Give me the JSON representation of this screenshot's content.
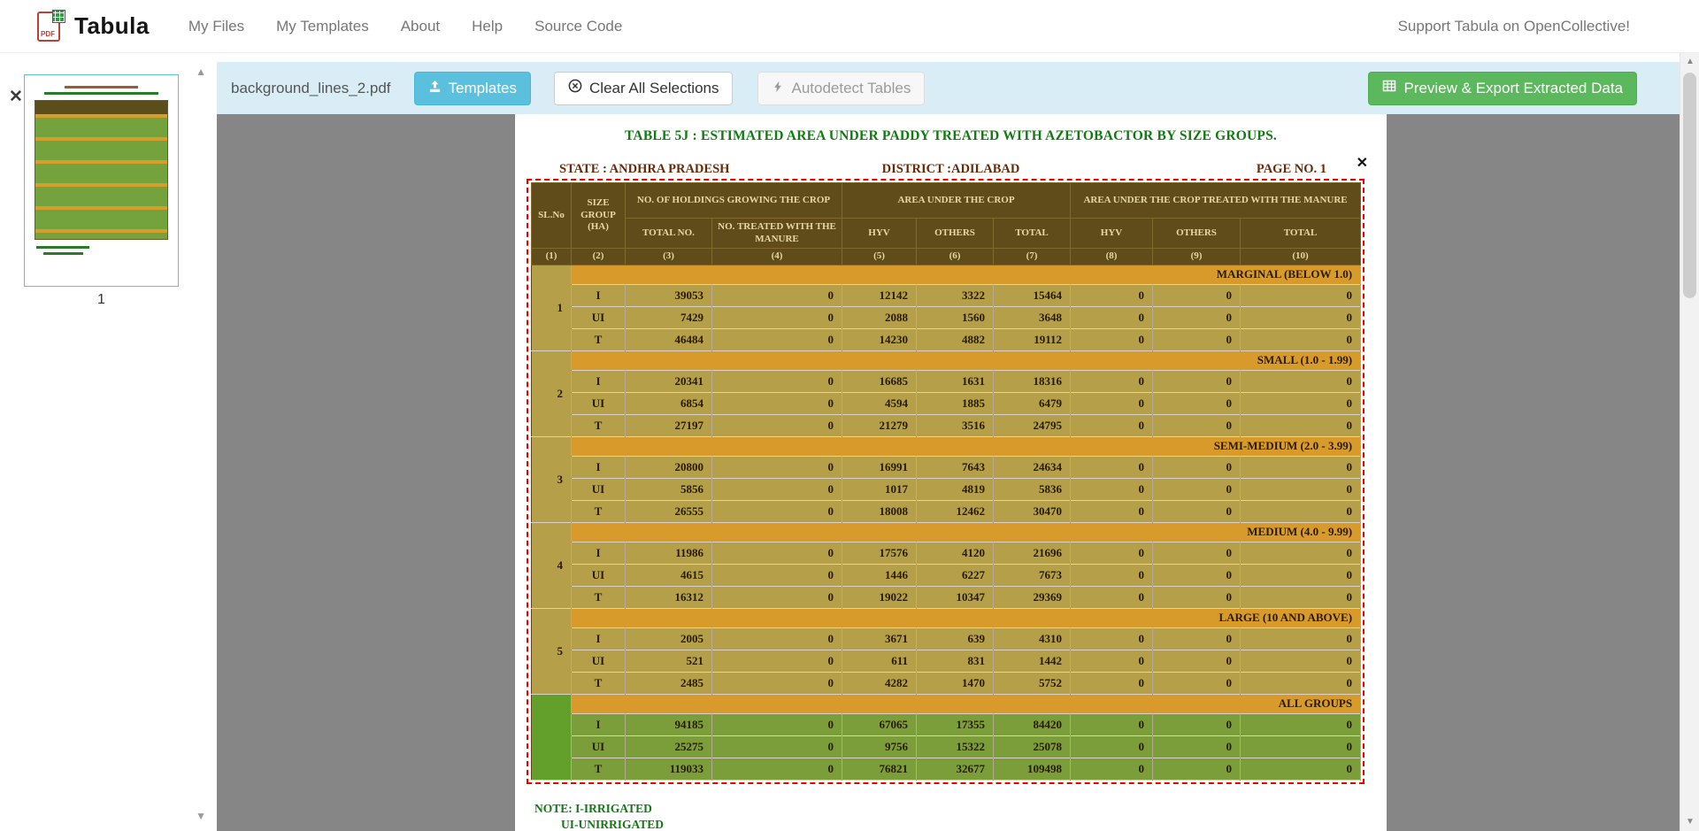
{
  "navbar": {
    "brand": "Tabula",
    "items": [
      {
        "label": "My Files"
      },
      {
        "label": "My Templates"
      },
      {
        "label": "About"
      },
      {
        "label": "Help"
      },
      {
        "label": "Source Code"
      }
    ],
    "support": "Support Tabula on OpenCollective!"
  },
  "toolbar": {
    "filename": "background_lines_2.pdf",
    "templates": "Templates",
    "clear": "Clear All Selections",
    "autodetect": "Autodetect Tables",
    "export": "Preview & Export Extracted Data"
  },
  "sidebar": {
    "page_number": "1"
  },
  "icons": {
    "remove": "✕",
    "scroll_up": "▲",
    "scroll_down": "▼",
    "selection_close": "✕"
  },
  "colors": {
    "toolbar_bg": "#d9edf7",
    "templates_button": "#5bc0de",
    "export_button": "#5cb85c",
    "selection_border": "#ee0000",
    "table_header_bg": "#5c4e1b",
    "table_body_bg": "#b4a34a",
    "group_band_bg": "#d89e2b",
    "all_groups_bg": "#79a23c"
  },
  "pdf_page": {
    "title": "TABLE 5J : ESTIMATED AREA UNDER PADDY  TREATED WITH AZETOBACTOR BY SIZE GROUPS.",
    "state": "STATE :  ANDHRA PRADESH",
    "district": "DISTRICT :ADILABAD",
    "page_no": "PAGE NO. 1",
    "notes": [
      "NOTE: I-IRRIGATED",
      "UI-UNIRRIGATED"
    ],
    "table": {
      "header": {
        "sl_no": "SL.No",
        "size_group": "SIZE GROUP (HA)",
        "holdings": "NO. OF HOLDINGS GROWING THE CROP",
        "area_crop": "AREA UNDER THE CROP",
        "area_treated": "AREA UNDER THE CROP TREATED WITH THE MANURE",
        "sub": [
          "TOTAL NO.",
          "NO. TREATED WITH THE MANURE",
          "HYV",
          "OTHERS",
          "TOTAL",
          "HYV",
          "OTHERS",
          "TOTAL"
        ]
      },
      "col_numbers": [
        "(1)",
        "(2)",
        "(3)",
        "(4)",
        "(5)",
        "(6)",
        "(7)",
        "(8)",
        "(9)",
        "(10)"
      ],
      "groups": [
        {
          "sl_no": "1",
          "title": "MARGINAL (BELOW 1.0)",
          "all_groups": false,
          "rows": [
            {
              "label": "I",
              "values": [
                "39053",
                "0",
                "12142",
                "3322",
                "15464",
                "0",
                "0",
                "0"
              ]
            },
            {
              "label": "UI",
              "values": [
                "7429",
                "0",
                "2088",
                "1560",
                "3648",
                "0",
                "0",
                "0"
              ]
            },
            {
              "label": "T",
              "values": [
                "46484",
                "0",
                "14230",
                "4882",
                "19112",
                "0",
                "0",
                "0"
              ]
            }
          ]
        },
        {
          "sl_no": "2",
          "title": "SMALL (1.0 - 1.99)",
          "all_groups": false,
          "rows": [
            {
              "label": "I",
              "values": [
                "20341",
                "0",
                "16685",
                "1631",
                "18316",
                "0",
                "0",
                "0"
              ]
            },
            {
              "label": "UI",
              "values": [
                "6854",
                "0",
                "4594",
                "1885",
                "6479",
                "0",
                "0",
                "0"
              ]
            },
            {
              "label": "T",
              "values": [
                "27197",
                "0",
                "21279",
                "3516",
                "24795",
                "0",
                "0",
                "0"
              ]
            }
          ]
        },
        {
          "sl_no": "3",
          "title": "SEMI-MEDIUM (2.0 - 3.99)",
          "all_groups": false,
          "rows": [
            {
              "label": "I",
              "values": [
                "20800",
                "0",
                "16991",
                "7643",
                "24634",
                "0",
                "0",
                "0"
              ]
            },
            {
              "label": "UI",
              "values": [
                "5856",
                "0",
                "1017",
                "4819",
                "5836",
                "0",
                "0",
                "0"
              ]
            },
            {
              "label": "T",
              "values": [
                "26555",
                "0",
                "18008",
                "12462",
                "30470",
                "0",
                "0",
                "0"
              ]
            }
          ]
        },
        {
          "sl_no": "4",
          "title": "MEDIUM (4.0 - 9.99)",
          "all_groups": false,
          "rows": [
            {
              "label": "I",
              "values": [
                "11986",
                "0",
                "17576",
                "4120",
                "21696",
                "0",
                "0",
                "0"
              ]
            },
            {
              "label": "UI",
              "values": [
                "4615",
                "0",
                "1446",
                "6227",
                "7673",
                "0",
                "0",
                "0"
              ]
            },
            {
              "label": "T",
              "values": [
                "16312",
                "0",
                "19022",
                "10347",
                "29369",
                "0",
                "0",
                "0"
              ]
            }
          ]
        },
        {
          "sl_no": "5",
          "title": "LARGE (10 AND ABOVE)",
          "all_groups": false,
          "rows": [
            {
              "label": "I",
              "values": [
                "2005",
                "0",
                "3671",
                "639",
                "4310",
                "0",
                "0",
                "0"
              ]
            },
            {
              "label": "UI",
              "values": [
                "521",
                "0",
                "611",
                "831",
                "1442",
                "0",
                "0",
                "0"
              ]
            },
            {
              "label": "T",
              "values": [
                "2485",
                "0",
                "4282",
                "1470",
                "5752",
                "0",
                "0",
                "0"
              ]
            }
          ]
        },
        {
          "sl_no": "",
          "title": "ALL GROUPS",
          "all_groups": true,
          "rows": [
            {
              "label": "I",
              "values": [
                "94185",
                "0",
                "67065",
                "17355",
                "84420",
                "0",
                "0",
                "0"
              ]
            },
            {
              "label": "UI",
              "values": [
                "25275",
                "0",
                "9756",
                "15322",
                "25078",
                "0",
                "0",
                "0"
              ]
            },
            {
              "label": "T",
              "values": [
                "119033",
                "0",
                "76821",
                "32677",
                "109498",
                "0",
                "0",
                "0"
              ]
            }
          ]
        }
      ]
    }
  }
}
